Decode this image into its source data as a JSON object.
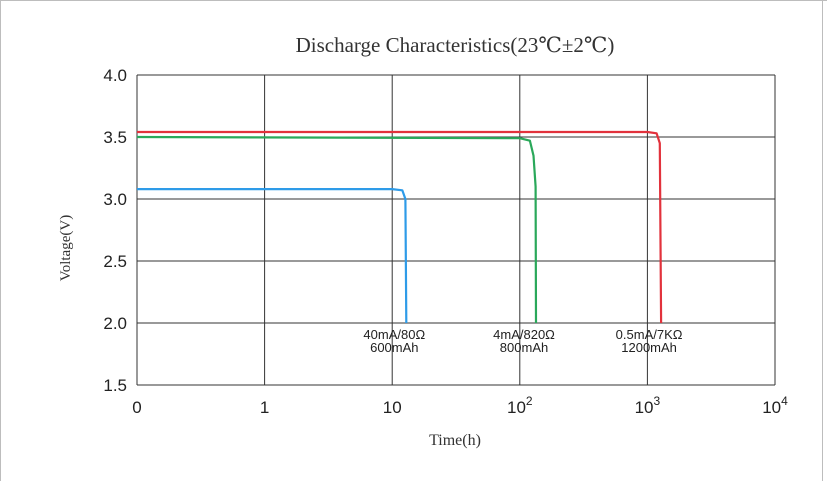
{
  "chart_data": {
    "type": "line",
    "title": "Discharge Characteristics(23℃±2℃)",
    "xlabel": "Time(h)",
    "ylabel": "Voltage(V)",
    "x_scale": "log",
    "x_tick_labels": [
      {
        "base": "0",
        "exp": ""
      },
      {
        "base": "1",
        "exp": ""
      },
      {
        "base": "10",
        "exp": ""
      },
      {
        "base": "10",
        "exp": "2"
      },
      {
        "base": "10",
        "exp": "3"
      },
      {
        "base": "10",
        "exp": "4"
      }
    ],
    "y_ticks": [
      "1.5",
      "2.0",
      "2.5",
      "3.0",
      "3.5",
      "4.0"
    ],
    "ylim": [
      1.5,
      4.0
    ],
    "grid": true,
    "series": [
      {
        "color": "#2e9be8",
        "labels": [
          "40mA/80Ω",
          "600mAh"
        ],
        "points": [
          [
            0,
            3.08
          ],
          [
            10,
            3.08
          ],
          [
            12,
            3.07
          ],
          [
            12.7,
            3.0
          ],
          [
            12.9,
            2.0
          ]
        ]
      },
      {
        "color": "#2aa85a",
        "labels": [
          "4mA/820Ω",
          "800mAh"
        ],
        "points": [
          [
            0,
            3.5
          ],
          [
            100,
            3.49
          ],
          [
            120,
            3.47
          ],
          [
            128,
            3.35
          ],
          [
            133,
            3.1
          ],
          [
            134,
            2.0
          ]
        ]
      },
      {
        "color": "#e2323c",
        "labels": [
          "0.5mA/7KΩ",
          "1200mAh"
        ],
        "points": [
          [
            0,
            3.54
          ],
          [
            1000,
            3.54
          ],
          [
            1180,
            3.53
          ],
          [
            1250,
            3.45
          ],
          [
            1280,
            2.0
          ]
        ]
      }
    ]
  }
}
